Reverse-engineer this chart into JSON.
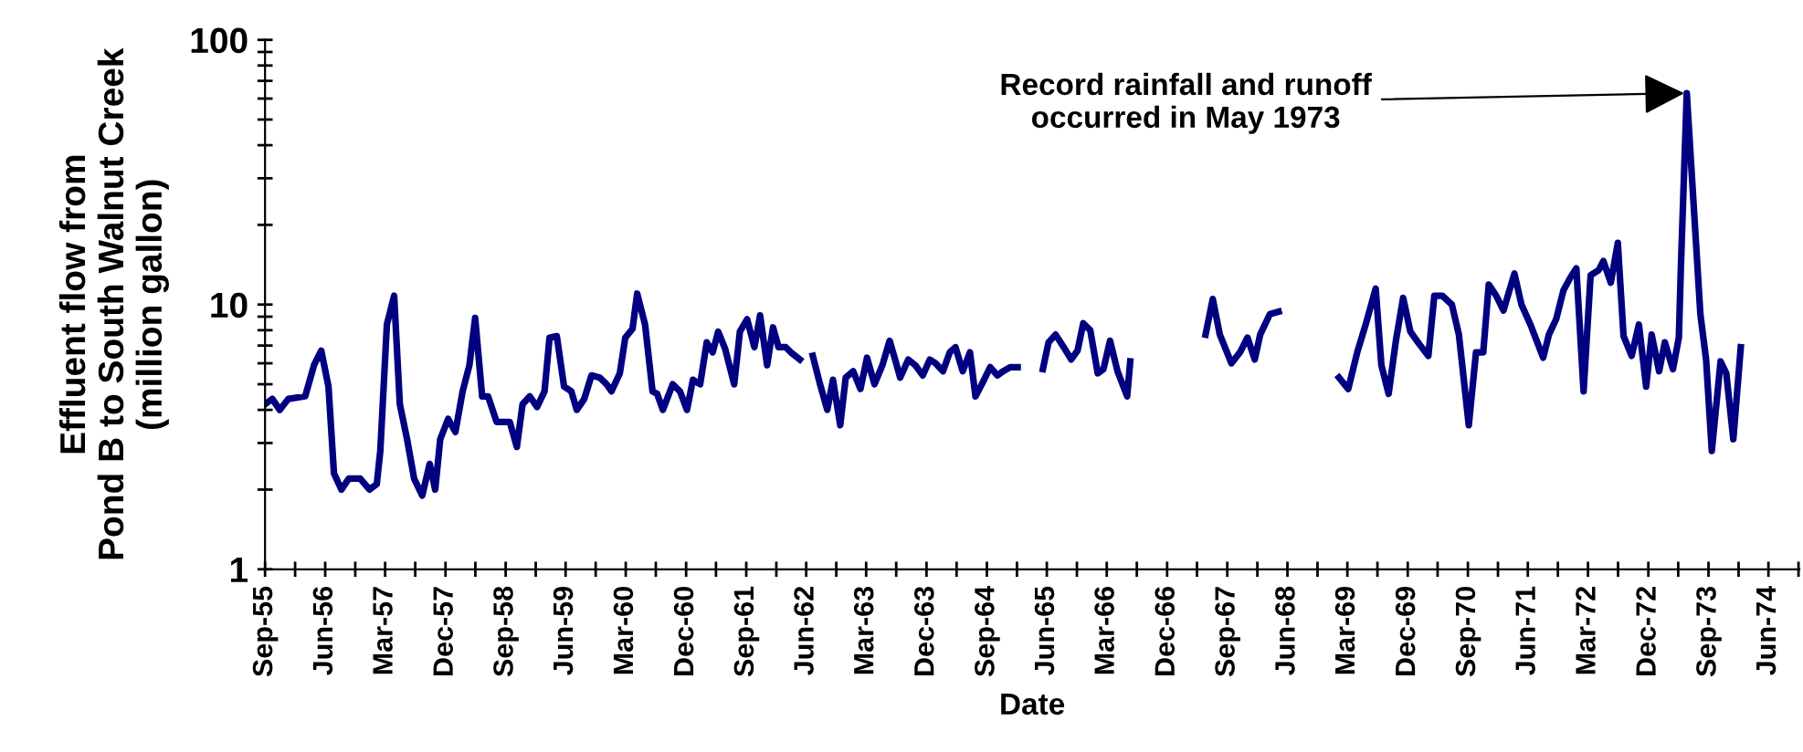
{
  "chart_data": {
    "type": "line",
    "xlabel": "Date",
    "ylabel": "Effluent flow from\nPond B to South Walnut Creek\n(million gallon)",
    "log": "y",
    "grid": false,
    "legend": false,
    "marker": "none",
    "line_style": "solid",
    "xlim": [
      "1955-09-01",
      "1974-10-20"
    ],
    "ylim": [
      1,
      100
    ],
    "yticks": [
      1,
      {
        "value": 2,
        "label": null
      },
      {
        "value": 3,
        "label": null
      },
      {
        "value": 4,
        "label": null
      },
      {
        "value": 5,
        "label": null
      },
      {
        "value": 6,
        "label": null
      },
      {
        "value": 7,
        "label": null
      },
      {
        "value": 8,
        "label": null
      },
      {
        "value": 9,
        "label": null
      },
      10,
      {
        "value": 20,
        "label": null
      },
      {
        "value": 30,
        "label": null
      },
      {
        "value": 40,
        "label": null
      },
      {
        "value": 50,
        "label": null
      },
      {
        "value": 60,
        "label": null
      },
      {
        "value": 70,
        "label": null
      },
      {
        "value": 80,
        "label": null
      },
      {
        "value": 90,
        "label": null
      },
      100
    ],
    "xticks": [
      {
        "value": "1955-09-01",
        "label": "Sep-55"
      },
      {
        "value": "1956-01-16",
        "label": null
      },
      {
        "value": "1956-06-01",
        "label": "Jun-56"
      },
      {
        "value": "1956-10-16",
        "label": null
      },
      {
        "value": "1957-03-01",
        "label": "Mar-57"
      },
      {
        "value": "1957-07-16",
        "label": null
      },
      {
        "value": "1957-12-01",
        "label": "Dec-57"
      },
      {
        "value": "1958-04-16",
        "label": null
      },
      {
        "value": "1958-09-01",
        "label": "Sep-58"
      },
      {
        "value": "1959-01-16",
        "label": null
      },
      {
        "value": "1959-06-01",
        "label": "Jun-59"
      },
      {
        "value": "1959-10-16",
        "label": null
      },
      {
        "value": "1960-03-01",
        "label": "Mar-60"
      },
      {
        "value": "1960-07-16",
        "label": null
      },
      {
        "value": "1960-12-01",
        "label": "Dec-60"
      },
      {
        "value": "1961-04-16",
        "label": null
      },
      {
        "value": "1961-09-01",
        "label": "Sep-61"
      },
      {
        "value": "1962-01-16",
        "label": null
      },
      {
        "value": "1962-06-01",
        "label": "Jun-62"
      },
      {
        "value": "1962-10-16",
        "label": null
      },
      {
        "value": "1963-03-01",
        "label": "Mar-63"
      },
      {
        "value": "1963-07-16",
        "label": null
      },
      {
        "value": "1963-12-01",
        "label": "Dec-63"
      },
      {
        "value": "1964-04-16",
        "label": null
      },
      {
        "value": "1964-09-01",
        "label": "Sep-64"
      },
      {
        "value": "1965-01-16",
        "label": null
      },
      {
        "value": "1965-06-01",
        "label": "Jun-65"
      },
      {
        "value": "1965-10-16",
        "label": null
      },
      {
        "value": "1966-03-01",
        "label": "Mar-66"
      },
      {
        "value": "1966-07-16",
        "label": null
      },
      {
        "value": "1966-12-01",
        "label": "Dec-66"
      },
      {
        "value": "1967-04-16",
        "label": null
      },
      {
        "value": "1967-09-01",
        "label": "Sep-67"
      },
      {
        "value": "1968-01-16",
        "label": null
      },
      {
        "value": "1968-06-01",
        "label": "Jun-68"
      },
      {
        "value": "1968-10-16",
        "label": null
      },
      {
        "value": "1969-03-01",
        "label": "Mar-69"
      },
      {
        "value": "1969-07-16",
        "label": null
      },
      {
        "value": "1969-12-01",
        "label": "Dec-69"
      },
      {
        "value": "1970-04-16",
        "label": null
      },
      {
        "value": "1970-09-01",
        "label": "Sep-70"
      },
      {
        "value": "1971-01-16",
        "label": null
      },
      {
        "value": "1971-06-01",
        "label": "Jun-71"
      },
      {
        "value": "1971-10-16",
        "label": null
      },
      {
        "value": "1972-03-01",
        "label": "Mar-72"
      },
      {
        "value": "1972-07-16",
        "label": null
      },
      {
        "value": "1972-12-01",
        "label": "Dec-72"
      },
      {
        "value": "1973-04-16",
        "label": null
      },
      {
        "value": "1973-09-01",
        "label": "Sep-73"
      },
      {
        "value": "1974-01-16",
        "label": null
      },
      {
        "value": "1974-06-01",
        "label": "Jun-74"
      },
      {
        "value": "1974-10-16",
        "label": null
      }
    ],
    "annotations": [
      {
        "text": "Record rainfall and runoff\noccurred in May 1973",
        "x": "1973-05-25",
        "y": 62.9
      }
    ],
    "series": [
      {
        "color": "#000080",
        "x": [
          "1955-09-01",
          "1955-10-04",
          "1955-11-07",
          "1955-12-16",
          "1956-03-02",
          "1956-04-11",
          "1956-05-14",
          "1956-06-16",
          "1956-07-11",
          "1956-08-14",
          "1956-09-16",
          "1956-11-07",
          "1956-12-20",
          "1957-01-22",
          "1957-02-07",
          "1957-03-09",
          "1957-04-11",
          "1957-05-07",
          "1957-06-09",
          "1957-07-11",
          "1957-08-17",
          "1957-09-20",
          "1957-10-15",
          "1957-11-07",
          "1957-12-13",
          "1958-01-15",
          "1958-02-17",
          "1958-03-20",
          "1958-04-15",
          "1958-05-17",
          "1958-06-13",
          "1958-07-22",
          "1958-09-02",
          "1958-09-20",
          "1958-10-22",
          "1958-11-17",
          "1958-12-20",
          "1959-01-22",
          "1959-02-25",
          "1959-03-20",
          "1959-04-22",
          "1959-05-25",
          "1959-06-27",
          "1959-07-22",
          "1959-08-25",
          "1959-09-27",
          "1959-11-03",
          "1959-12-05",
          "1959-12-27",
          "1960-02-03",
          "1960-02-28",
          "1960-04-01",
          "1960-04-22",
          "1960-05-28",
          "1960-07-01",
          "1960-07-22",
          "1960-08-17",
          "1960-10-01",
          "1960-11-03",
          "1960-12-05",
          "1961-01-01",
          "1961-02-03",
          "1961-03-05",
          "1961-04-01",
          "1961-04-26",
          "1961-05-28",
          "1961-07-08",
          "1961-08-03",
          "1961-09-05",
          "1961-10-08",
          "1961-11-03",
          "1961-12-05",
          "1962-01-01",
          "1962-01-26",
          "1962-02-28",
          "1962-03-23",
          "1962-05-03",
          "1962-06-02",
          "1962-07-01",
          "1962-08-03",
          "1962-09-05",
          "1962-10-01",
          "1962-11-03",
          "1962-11-28",
          "1963-01-01",
          "1963-02-03",
          "1963-03-05",
          "1963-04-08",
          "1963-05-14",
          "1963-06-16",
          "1963-07-11",
          "1963-08-03",
          "1963-09-09",
          "1963-10-11",
          "1963-11-14",
          "1963-12-16",
          "1964-01-11",
          "1964-02-14",
          "1964-03-16",
          "1964-04-11",
          "1964-05-14",
          "1964-06-16",
          "1964-07-11",
          "1964-08-14",
          "1964-09-16",
          "1964-10-19",
          "1964-11-14",
          "1964-12-16",
          "1965-01-19",
          "1965-03-16",
          "1965-05-14",
          "1965-06-09",
          "1965-07-11",
          "1965-08-17",
          "1965-09-20",
          "1965-10-19",
          "1965-11-14",
          "1965-12-16",
          "1966-01-19",
          "1966-02-14",
          "1966-03-16",
          "1966-04-19",
          "1966-06-02",
          "1966-06-16",
          "1966-12-05",
          "1967-05-25",
          "1967-06-27",
          "1967-07-29",
          "1967-09-20",
          "1967-10-29",
          "1967-12-02",
          "1968-01-04",
          "1968-01-29",
          "1968-03-13",
          "1968-04-22",
          "1968-09-05",
          "1969-01-22",
          "1969-03-05",
          "1969-04-15",
          "1969-05-25",
          "1969-07-08",
          "1969-08-03",
          "1969-09-05",
          "1969-10-08",
          "1969-11-10",
          "1969-12-13",
          "1970-01-22",
          "1970-03-05",
          "1970-04-01",
          "1970-05-07",
          "1970-06-20",
          "1970-07-22",
          "1970-09-05",
          "1970-10-08",
          "1970-11-10",
          "1970-12-05",
          "1971-01-08",
          "1971-02-10",
          "1971-04-01",
          "1971-05-03",
          "1971-06-13",
          "1971-08-10",
          "1971-09-05",
          "1971-10-08",
          "1971-11-10",
          "1971-12-13",
          "1972-01-08",
          "1972-02-10",
          "1972-03-13",
          "1972-04-19",
          "1972-05-10",
          "1972-06-13",
          "1972-07-15",
          "1972-08-10",
          "1972-09-16",
          "1972-10-19",
          "1972-11-21",
          "1972-12-16",
          "1973-01-19",
          "1973-02-14",
          "1973-03-23",
          "1973-04-19",
          "1973-04-28",
          "1973-05-25",
          "1973-07-26",
          "1973-08-21",
          "1973-09-16",
          "1973-10-26",
          "1973-11-21",
          "1973-12-23",
          "1974-01-26"
        ],
        "values": [
          4.2,
          4.4,
          4.0,
          4.4,
          4.5,
          5.9,
          6.7,
          4.9,
          2.3,
          2.0,
          2.2,
          2.2,
          2.0,
          2.1,
          2.8,
          8.4,
          10.8,
          4.2,
          3.1,
          2.2,
          1.9,
          2.5,
          2.0,
          3.1,
          3.7,
          3.3,
          4.7,
          5.9,
          8.9,
          4.5,
          4.5,
          3.6,
          3.6,
          3.6,
          2.9,
          4.2,
          4.5,
          4.1,
          4.7,
          7.5,
          7.6,
          4.9,
          4.7,
          4.0,
          4.4,
          5.4,
          5.3,
          5.0,
          4.7,
          5.5,
          7.5,
          8.1,
          11.0,
          8.4,
          4.7,
          4.6,
          4.0,
          5.0,
          4.7,
          4.0,
          5.2,
          5.0,
          7.2,
          6.6,
          7.9,
          6.8,
          5.0,
          7.9,
          8.8,
          6.9,
          9.1,
          5.9,
          8.2,
          6.9,
          6.9,
          6.6,
          6.2,
          null,
          6.4,
          5.0,
          4.0,
          5.2,
          3.5,
          5.3,
          5.6,
          4.8,
          6.3,
          5.0,
          5.9,
          7.3,
          6.2,
          5.3,
          6.2,
          5.9,
          5.4,
          6.2,
          6.0,
          5.6,
          6.6,
          6.9,
          5.6,
          6.6,
          4.5,
          5.1,
          5.8,
          5.4,
          5.6,
          5.8,
          5.8,
          null,
          5.7,
          7.2,
          7.7,
          6.9,
          6.2,
          6.7,
          8.5,
          8.0,
          5.5,
          5.7,
          7.3,
          5.6,
          4.5,
          6.1,
          null,
          7.7,
          10.5,
          7.7,
          6.0,
          6.6,
          7.5,
          6.2,
          7.7,
          9.2,
          9.4,
          null,
          5.3,
          4.8,
          6.6,
          8.5,
          11.5,
          5.9,
          4.6,
          7.3,
          10.6,
          7.9,
          7.1,
          6.4,
          10.8,
          10.8,
          10.0,
          7.7,
          3.5,
          6.6,
          6.6,
          11.9,
          10.8,
          9.5,
          13.1,
          10.0,
          8.4,
          6.3,
          7.7,
          8.8,
          11.3,
          12.7,
          13.7,
          4.7,
          12.9,
          13.5,
          14.6,
          12.1,
          17.1,
          7.6,
          6.4,
          8.4,
          4.9,
          7.7,
          5.6,
          7.2,
          5.7,
          7.5,
          13.7,
          62.9,
          9.2,
          6.2,
          2.8,
          6.1,
          5.5,
          3.1,
          6.9
        ]
      }
    ]
  }
}
